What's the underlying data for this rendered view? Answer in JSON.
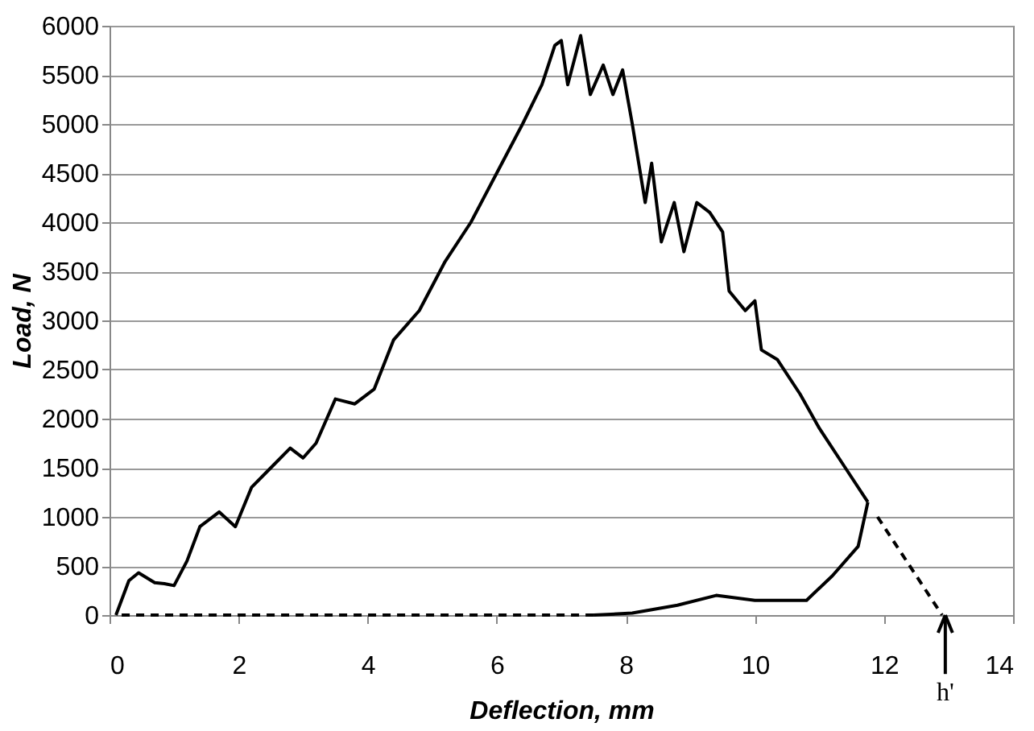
{
  "chart_data": {
    "type": "line",
    "xlabel": "Deflection, mm",
    "ylabel": "Load, N",
    "xlim": [
      0,
      14
    ],
    "xticks": [
      0,
      2,
      4,
      6,
      8,
      10,
      12,
      14
    ],
    "ylim": [
      0,
      6000
    ],
    "yticks": [
      0,
      500,
      1000,
      1500,
      2000,
      2500,
      3000,
      3500,
      4000,
      4500,
      5000,
      5500,
      6000
    ],
    "grid": "y",
    "marker": "none",
    "series": [
      {
        "color": "#000000",
        "line_style": "solid",
        "x": [
          0.1,
          0.3,
          0.45,
          0.7,
          0.85,
          1.0,
          1.2,
          1.4,
          1.7,
          1.95,
          2.2,
          2.5,
          2.8,
          3.0,
          3.2,
          3.5,
          3.8,
          4.1,
          4.4,
          4.8,
          5.2,
          5.6,
          6.0,
          6.4,
          6.7,
          6.9,
          7.0,
          7.1,
          7.3,
          7.45,
          7.65,
          7.8,
          7.95,
          8.1,
          8.3,
          8.4,
          8.55,
          8.75,
          8.9,
          9.1,
          9.3,
          9.5,
          9.6,
          9.85,
          10.0,
          10.1,
          10.35,
          10.7,
          11.0,
          11.4,
          11.75
        ],
        "values": [
          0,
          350,
          430,
          330,
          320,
          300,
          550,
          900,
          1050,
          900,
          1300,
          1500,
          1700,
          1600,
          1750,
          2200,
          2150,
          2300,
          2800,
          3100,
          3600,
          4000,
          4500,
          5000,
          5400,
          5800,
          5850,
          5400,
          5900,
          5300,
          5600,
          5300,
          5550,
          5000,
          4200,
          4600,
          3800,
          4200,
          3700,
          4200,
          4100,
          3900,
          3300,
          3100,
          3200,
          2700,
          2600,
          2250,
          1900,
          1500,
          1150
        ]
      },
      {
        "color": "#000000",
        "line_style": "solid",
        "x": [
          11.75,
          11.6,
          11.2,
          10.8,
          10.5,
          10.0,
          9.4,
          8.8,
          8.1,
          7.5
        ],
        "values": [
          1150,
          700,
          400,
          150,
          150,
          150,
          200,
          100,
          20,
          0
        ]
      },
      {
        "color": "#000000",
        "line_style": "dashed",
        "x": [
          7.5,
          0.1
        ],
        "values": [
          0,
          0
        ]
      },
      {
        "color": "#000000",
        "line_style": "dashed",
        "x": [
          11.9,
          12.9
        ],
        "values": [
          1000,
          0
        ]
      }
    ],
    "annotations": [
      {
        "text": "h'",
        "x": 12.95,
        "y": 0
      }
    ]
  }
}
